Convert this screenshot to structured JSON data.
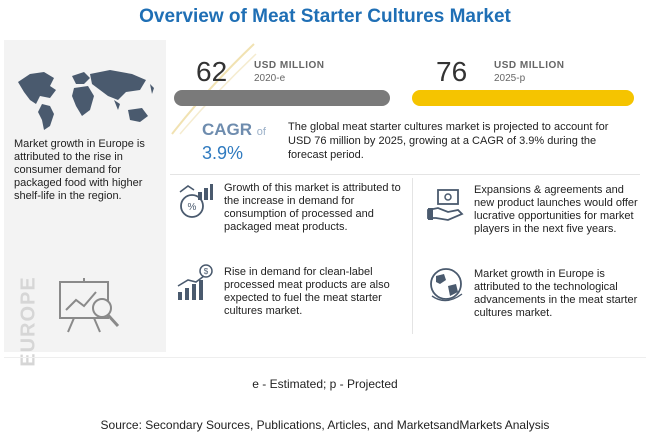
{
  "title": "Overview of Meat Starter Cultures Market",
  "region_watermark": "EUROPE",
  "left_panel_text": "Market growth in Europe is attributed to the rise in consumer demand for packaged food with higher shelf-life in the region.",
  "value_2020": {
    "number": "62",
    "unit": "USD MILLION",
    "year": "2020-e"
  },
  "value_2025": {
    "number": "76",
    "unit": "USD MILLION",
    "year": "2025-p"
  },
  "bar_colors": {
    "2020": "#7a7a7a",
    "2025": "#f5c400"
  },
  "accent_color": "#1f6fb5",
  "cagr": {
    "label": "CAGR",
    "of": "of",
    "value": "3.9%"
  },
  "summary": "The global meat starter cultures market is projected to account for USD 76 million by 2025, growing at a CAGR of 3.9% during the forecast period.",
  "factors": [
    {
      "icon": "growth-bar-chart-icon",
      "text": "Growth of this market is attributed to the increase in demand for consumption of processed and packaged meat products."
    },
    {
      "icon": "hand-money-icon",
      "text": "Expansions & agreements and new product launches would offer lucrative opportunities for market players in the next five years."
    },
    {
      "icon": "rising-dollar-chart-icon",
      "text": "Rise in demand for clean-label processed meat products are also expected to fuel the meat starter cultures market."
    },
    {
      "icon": "globe-icon",
      "text": "Market growth in Europe is attributed to the technological advancements in the meat starter cultures market."
    }
  ],
  "footnote": "e - Estimated; p - Projected",
  "source": "Source: Secondary Sources, Publications, Articles, and MarketsandMarkets Analysis"
}
